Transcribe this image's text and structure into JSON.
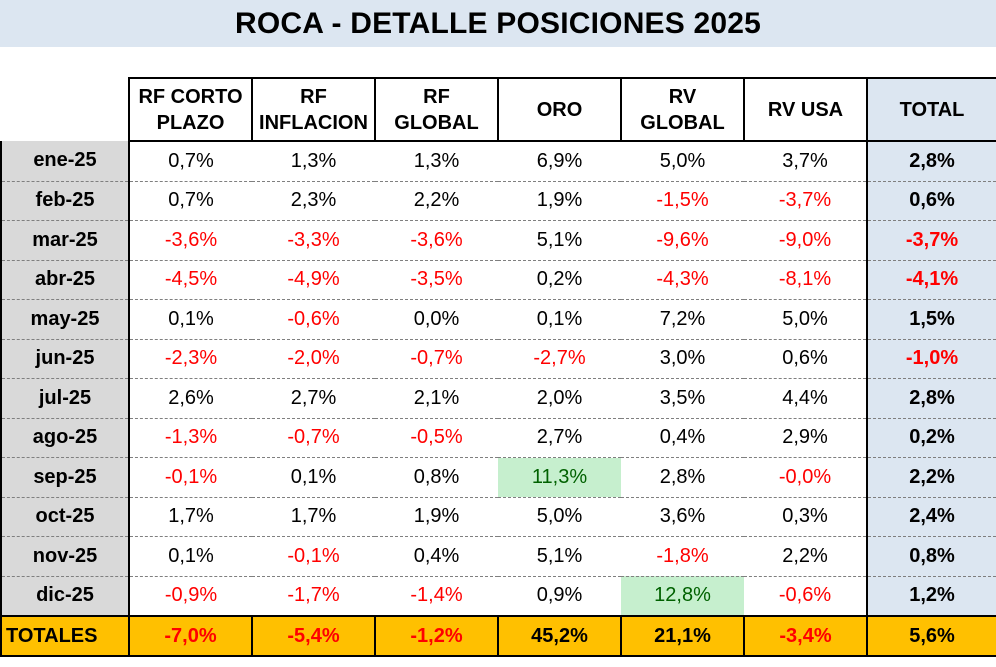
{
  "title": "ROCA - DETALLE POSICIONES 2025",
  "columns": [
    {
      "line1": "RF CORTO",
      "line2": "PLAZO"
    },
    {
      "line1": "RF",
      "line2": "INFLACION"
    },
    {
      "line1": "RF",
      "line2": "GLOBAL"
    },
    {
      "line1": "ORO",
      "line2": ""
    },
    {
      "line1": "RV",
      "line2": "GLOBAL"
    },
    {
      "line1": "RV USA",
      "line2": ""
    },
    {
      "line1": "TOTAL",
      "line2": ""
    }
  ],
  "rows": [
    {
      "month": "ene-25",
      "values": [
        "0,7%",
        "1,3%",
        "1,3%",
        "6,9%",
        "5,0%",
        "3,7%"
      ],
      "total": "2,8%"
    },
    {
      "month": "feb-25",
      "values": [
        "0,7%",
        "2,3%",
        "2,2%",
        "1,9%",
        "-1,5%",
        "-3,7%"
      ],
      "total": "0,6%"
    },
    {
      "month": "mar-25",
      "values": [
        "-3,6%",
        "-3,3%",
        "-3,6%",
        "5,1%",
        "-9,6%",
        "-9,0%"
      ],
      "total": "-3,7%"
    },
    {
      "month": "abr-25",
      "values": [
        "-4,5%",
        "-4,9%",
        "-3,5%",
        "0,2%",
        "-4,3%",
        "-8,1%"
      ],
      "total": "-4,1%"
    },
    {
      "month": "may-25",
      "values": [
        "0,1%",
        "-0,6%",
        "0,0%",
        "0,1%",
        "7,2%",
        "5,0%"
      ],
      "total": "1,5%"
    },
    {
      "month": "jun-25",
      "values": [
        "-2,3%",
        "-2,0%",
        "-0,7%",
        "-2,7%",
        "3,0%",
        "0,6%"
      ],
      "total": "-1,0%"
    },
    {
      "month": "jul-25",
      "values": [
        "2,6%",
        "2,7%",
        "2,1%",
        "2,0%",
        "3,5%",
        "4,4%"
      ],
      "total": "2,8%"
    },
    {
      "month": "ago-25",
      "values": [
        "-1,3%",
        "-0,7%",
        "-0,5%",
        "2,7%",
        "0,4%",
        "2,9%"
      ],
      "total": "0,2%"
    },
    {
      "month": "sep-25",
      "values": [
        "-0,1%",
        "0,1%",
        "0,8%",
        "11,3%",
        "2,8%",
        "-0,0%"
      ],
      "total": "2,2%"
    },
    {
      "month": "oct-25",
      "values": [
        "1,7%",
        "1,7%",
        "1,9%",
        "5,0%",
        "3,6%",
        "0,3%"
      ],
      "total": "2,4%"
    },
    {
      "month": "nov-25",
      "values": [
        "0,1%",
        "-0,1%",
        "0,4%",
        "5,1%",
        "-1,8%",
        "2,2%"
      ],
      "total": "0,8%"
    },
    {
      "month": "dic-25",
      "values": [
        "-0,9%",
        "-1,7%",
        "-1,4%",
        "0,9%",
        "12,8%",
        "-0,6%"
      ],
      "total": "1,2%"
    }
  ],
  "highlights": [
    {
      "row": 8,
      "col": 3
    },
    {
      "row": 11,
      "col": 4
    }
  ],
  "totals": {
    "label": "TOTALES",
    "values": [
      "-7,0%",
      "-5,4%",
      "-1,2%",
      "45,2%",
      "21,1%",
      "-3,4%"
    ],
    "total": "5,6%"
  },
  "colors": {
    "title_bg": "#dce6f1",
    "month_bg": "#d9d9d9",
    "total_col_bg": "#dce6f1",
    "totals_row_bg": "#ffc000",
    "negative": "#ff0000",
    "highlight_bg": "#c6efce",
    "highlight_text": "#006100"
  }
}
